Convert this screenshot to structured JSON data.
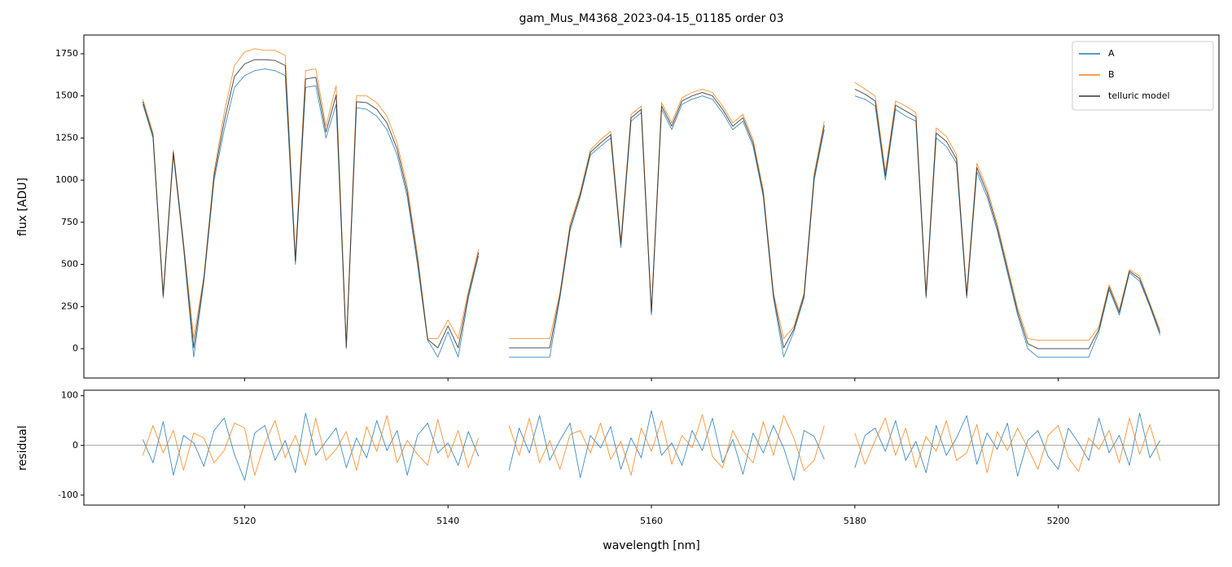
{
  "chart_data": [
    {
      "type": "line",
      "title": "gam_Mus_M4368_2023-04-15_01185  order 03",
      "ylabel": "flux [ADU]",
      "legend": "upper right",
      "xlim": [
        5104.2,
        5215.8
      ],
      "ylim": [
        -174,
        1861
      ],
      "yticks": [
        0,
        250,
        500,
        750,
        1000,
        1250,
        1500,
        1750
      ],
      "x": [
        5110,
        5111,
        5112,
        5113,
        5114,
        5115,
        5116,
        5117,
        5118,
        5119,
        5120,
        5121,
        5122,
        5123,
        5124,
        5125,
        5126,
        5127,
        5128,
        5129,
        5130,
        5131,
        5132,
        5133,
        5134,
        5135,
        5136,
        5137,
        5138,
        5139,
        5140,
        5141,
        5142,
        5143,
        5144,
        5145,
        5146,
        5147,
        5148,
        5149,
        5150,
        5151,
        5152,
        5153,
        5154,
        5155,
        5156,
        5157,
        5158,
        5159,
        5160,
        5161,
        5162,
        5163,
        5164,
        5165,
        5166,
        5167,
        5168,
        5169,
        5170,
        5171,
        5172,
        5173,
        5174,
        5175,
        5176,
        5177,
        5178,
        5179,
        5180,
        5181,
        5182,
        5183,
        5184,
        5185,
        5186,
        5187,
        5188,
        5189,
        5190,
        5191,
        5192,
        5193,
        5194,
        5195,
        5196,
        5197,
        5198,
        5199,
        5200,
        5201,
        5202,
        5203,
        5204,
        5205,
        5206,
        5207,
        5208,
        5209,
        5210
      ],
      "series": [
        {
          "name": "A",
          "color": "#1f77b4",
          "values": [
            1450,
            1250,
            300,
            1150,
            600,
            -50,
            400,
            1000,
            1300,
            1550,
            1620,
            1650,
            1660,
            1650,
            1620,
            500,
            1550,
            1560,
            1250,
            1450,
            0,
            1430,
            1420,
            1380,
            1300,
            1150,
            900,
            500,
            50,
            -50,
            100,
            -50,
            300,
            550,
            null,
            null,
            -50,
            -50,
            -50,
            -50,
            -50,
            300,
            700,
            900,
            1150,
            1200,
            1250,
            600,
            1350,
            1400,
            200,
            1420,
            1300,
            1450,
            1480,
            1500,
            1480,
            1400,
            1300,
            1350,
            1200,
            900,
            300,
            -50,
            100,
            300,
            1000,
            1300,
            null,
            null,
            1500,
            1480,
            1440,
            1000,
            1420,
            1380,
            1350,
            300,
            1250,
            1200,
            1100,
            300,
            1050,
            900,
            700,
            450,
            200,
            0,
            -50,
            -50,
            -50,
            -50,
            -50,
            -50,
            100,
            350,
            200,
            450,
            400,
            250,
            80
          ]
        },
        {
          "name": "B",
          "color": "#ff7f0e",
          "values": [
            1480,
            1280,
            330,
            1180,
            630,
            60,
            430,
            1050,
            1400,
            1680,
            1760,
            1780,
            1770,
            1770,
            1740,
            540,
            1650,
            1660,
            1320,
            1560,
            20,
            1500,
            1500,
            1460,
            1380,
            1220,
            960,
            560,
            60,
            60,
            170,
            60,
            340,
            590,
            null,
            null,
            60,
            60,
            60,
            60,
            60,
            330,
            740,
            930,
            1180,
            1240,
            1290,
            640,
            1390,
            1440,
            230,
            1460,
            1340,
            1490,
            1520,
            1540,
            1520,
            1440,
            1340,
            1390,
            1240,
            940,
            330,
            60,
            130,
            330,
            1040,
            1350,
            null,
            null,
            1580,
            1540,
            1500,
            1050,
            1470,
            1440,
            1400,
            330,
            1310,
            1260,
            1150,
            330,
            1100,
            950,
            740,
            490,
            240,
            60,
            50,
            50,
            50,
            50,
            50,
            50,
            130,
            380,
            230,
            470,
            430,
            270,
            110
          ]
        },
        {
          "name": "telluric model",
          "color": "#333333",
          "values": [
            1465,
            1265,
            315,
            1165,
            615,
            5,
            415,
            1025,
            1350,
            1615,
            1690,
            1715,
            1715,
            1710,
            1680,
            520,
            1600,
            1610,
            1285,
            1505,
            10,
            1465,
            1460,
            1420,
            1340,
            1185,
            930,
            530,
            55,
            5,
            135,
            5,
            320,
            570,
            null,
            null,
            5,
            5,
            5,
            5,
            5,
            315,
            720,
            915,
            1165,
            1220,
            1270,
            620,
            1370,
            1420,
            215,
            1440,
            1320,
            1470,
            1500,
            1520,
            1500,
            1420,
            1320,
            1370,
            1220,
            920,
            315,
            5,
            115,
            315,
            1020,
            1325,
            null,
            null,
            1540,
            1510,
            1470,
            1025,
            1445,
            1410,
            1375,
            315,
            1280,
            1230,
            1125,
            315,
            1075,
            925,
            720,
            470,
            220,
            30,
            0,
            0,
            0,
            0,
            0,
            0,
            115,
            365,
            215,
            460,
            415,
            260,
            95
          ]
        }
      ]
    },
    {
      "type": "line",
      "xlabel": "wavelength [nm]",
      "ylabel": "residual",
      "xlim": [
        5104.2,
        5215.8
      ],
      "ylim": [
        -120,
        111
      ],
      "xticks": [
        5120,
        5140,
        5160,
        5180,
        5200
      ],
      "yticks": [
        -100,
        0,
        100
      ],
      "x": [
        5110,
        5111,
        5112,
        5113,
        5114,
        5115,
        5116,
        5117,
        5118,
        5119,
        5120,
        5121,
        5122,
        5123,
        5124,
        5125,
        5126,
        5127,
        5128,
        5129,
        5130,
        5131,
        5132,
        5133,
        5134,
        5135,
        5136,
        5137,
        5138,
        5139,
        5140,
        5141,
        5142,
        5143,
        5144,
        5145,
        5146,
        5147,
        5148,
        5149,
        5150,
        5151,
        5152,
        5153,
        5154,
        5155,
        5156,
        5157,
        5158,
        5159,
        5160,
        5161,
        5162,
        5163,
        5164,
        5165,
        5166,
        5167,
        5168,
        5169,
        5170,
        5171,
        5172,
        5173,
        5174,
        5175,
        5176,
        5177,
        5178,
        5179,
        5180,
        5181,
        5182,
        5183,
        5184,
        5185,
        5186,
        5187,
        5188,
        5189,
        5190,
        5191,
        5192,
        5193,
        5194,
        5195,
        5196,
        5197,
        5198,
        5199,
        5200,
        5201,
        5202,
        5203,
        5204,
        5205,
        5206,
        5207,
        5208,
        5209,
        5210
      ],
      "series": [
        {
          "color": "#1f77b4",
          "values": [
            12,
            -35,
            48,
            -60,
            20,
            5,
            -42,
            30,
            55,
            -18,
            -70,
            25,
            40,
            -30,
            10,
            -55,
            65,
            -20,
            8,
            35,
            -45,
            15,
            -25,
            50,
            -10,
            30,
            -60,
            20,
            45,
            -15,
            5,
            -40,
            28,
            -22,
            null,
            null,
            -50,
            35,
            -15,
            60,
            -30,
            10,
            45,
            -65,
            20,
            -5,
            38,
            -48,
            15,
            -25,
            70,
            -20,
            5,
            -40,
            30,
            -10,
            55,
            -35,
            12,
            -58,
            25,
            -15,
            40,
            -5,
            -70,
            30,
            18,
            -28,
            null,
            null,
            -45,
            20,
            35,
            -12,
            50,
            -30,
            8,
            -55,
            40,
            -20,
            15,
            60,
            -38,
            25,
            -8,
            45,
            -62,
            10,
            30,
            -22,
            -48,
            35,
            5,
            -30,
            55,
            -15,
            20,
            -40,
            65,
            -25,
            10
          ]
        },
        {
          "color": "#ff7f0e",
          "values": [
            -20,
            40,
            -15,
            30,
            -50,
            25,
            15,
            -35,
            -10,
            45,
            35,
            -60,
            5,
            50,
            -25,
            20,
            -40,
            55,
            -30,
            -8,
            28,
            -50,
            38,
            -12,
            60,
            -35,
            10,
            -18,
            -40,
            52,
            -25,
            30,
            -45,
            15,
            null,
            null,
            40,
            -20,
            55,
            -35,
            10,
            -48,
            22,
            30,
            -15,
            45,
            -28,
            8,
            -60,
            35,
            -12,
            50,
            -38,
            20,
            -5,
            62,
            -22,
            -45,
            30,
            -10,
            -35,
            48,
            -20,
            60,
            15,
            -50,
            -30,
            40,
            null,
            null,
            25,
            -38,
            10,
            55,
            -20,
            35,
            -45,
            18,
            -12,
            50,
            -30,
            -15,
            42,
            -55,
            28,
            -10,
            35,
            -5,
            -48,
            20,
            40,
            -25,
            -52,
            15,
            -8,
            30,
            -35,
            55,
            -18,
            42,
            -30
          ]
        }
      ]
    }
  ]
}
